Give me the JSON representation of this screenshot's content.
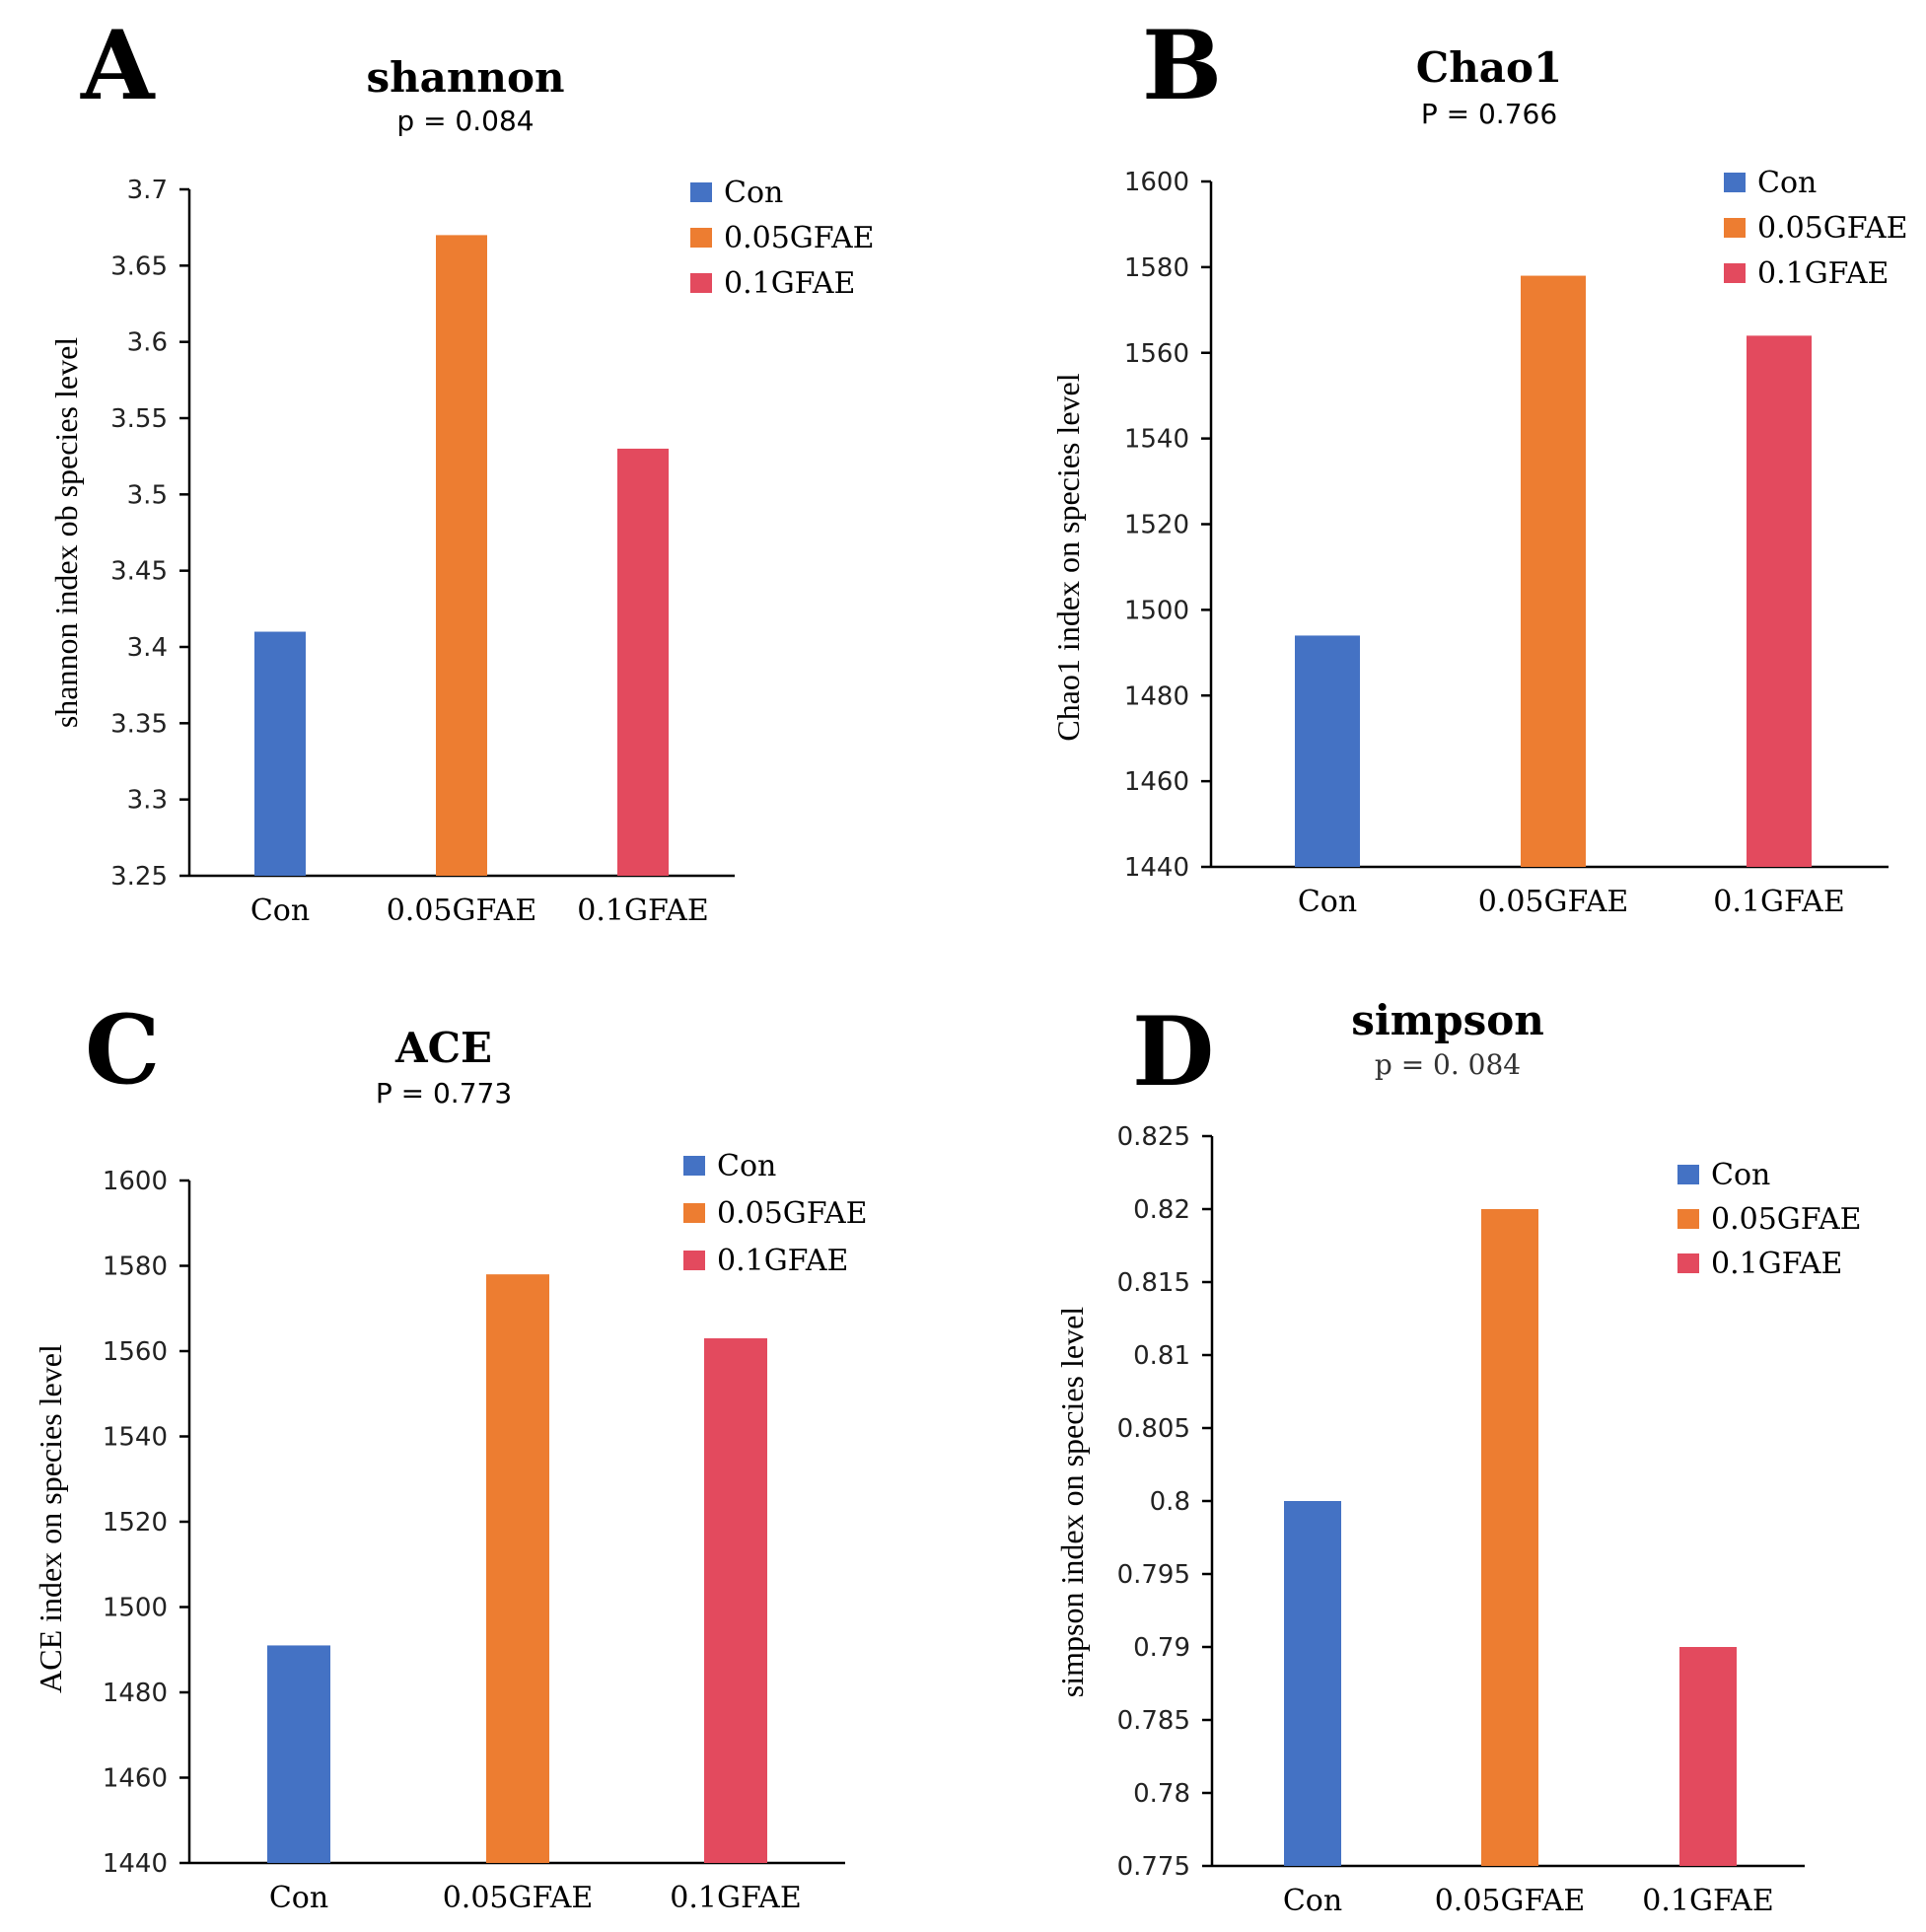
{
  "colors": {
    "Con": "#4472C4",
    "0.05GFAE": "#ED7D31",
    "0.1GFAE": "#E34A5E"
  },
  "chart_data": [
    {
      "panel": "A",
      "type": "bar",
      "title": "shannon",
      "pvalue": "p = 0.084",
      "ylabel": "shannon index ob species level",
      "categories": [
        "Con",
        "0.05GFAE",
        "0.1GFAE"
      ],
      "values": [
        3.41,
        3.67,
        3.53
      ],
      "ylim": [
        3.25,
        3.7
      ],
      "yticks": [
        "3.7",
        "3.65",
        "3.6",
        "3.55",
        "3.5",
        "3.45",
        "3.4",
        "3.35",
        "3.3",
        "3.25"
      ],
      "legend": [
        "Con",
        "0.05GFAE",
        "0.1GFAE"
      ]
    },
    {
      "panel": "B",
      "type": "bar",
      "title": "Chao1",
      "pvalue": "P = 0.766",
      "ylabel": "Chao1 index on species level",
      "categories": [
        "Con",
        "0.05GFAE",
        "0.1GFAE"
      ],
      "values": [
        1494,
        1578,
        1564
      ],
      "ylim": [
        1440,
        1600
      ],
      "yticks": [
        "1600",
        "1580",
        "1560",
        "1540",
        "1520",
        "1500",
        "1480",
        "1460",
        "1440"
      ],
      "legend": [
        "Con",
        "0.05GFAE",
        "0.1GFAE"
      ]
    },
    {
      "panel": "C",
      "type": "bar",
      "title": "ACE",
      "pvalue": "P = 0.773",
      "ylabel": "ACE index on species level",
      "categories": [
        "Con",
        "0.05GFAE",
        "0.1GFAE"
      ],
      "values": [
        1491,
        1578,
        1563
      ],
      "ylim": [
        1440,
        1600
      ],
      "yticks": [
        "1600",
        "1580",
        "1560",
        "1540",
        "1520",
        "1500",
        "1480",
        "1460",
        "1440"
      ],
      "legend": [
        "Con",
        "0.05GFAE",
        "0.1GFAE"
      ]
    },
    {
      "panel": "D",
      "type": "bar",
      "title": "simpson",
      "pvalue": "p = 0. 084",
      "ylabel": "simpson index on species level",
      "categories": [
        "Con",
        "0.05GFAE",
        "0.1GFAE"
      ],
      "values": [
        0.8,
        0.82,
        0.79
      ],
      "ylim": [
        0.775,
        0.825
      ],
      "yticks": [
        "0.825",
        "0.82",
        "0.815",
        "0.81",
        "0.805",
        "0.8",
        "0.795",
        "0.79",
        "0.785",
        "0.78",
        "0.775"
      ],
      "legend": [
        "Con",
        "0.05GFAE",
        "0.1GFAE"
      ]
    }
  ]
}
